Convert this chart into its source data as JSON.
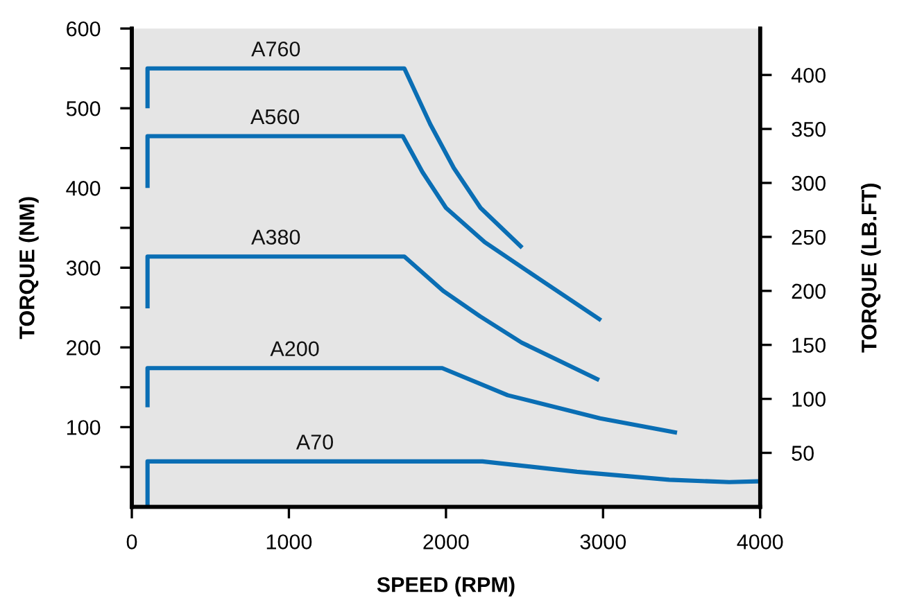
{
  "chart_data": {
    "type": "line",
    "xlabel": "SPEED (RPM)",
    "ylabel": "TORQUE (NM)",
    "y2label": "TORQUE (LB.FT)",
    "xlim": [
      0,
      4000
    ],
    "xticks": [
      0,
      1000,
      2000,
      3000,
      4000
    ],
    "ylim": [
      0,
      600
    ],
    "yticks": [
      {
        "value": 50,
        "label": null
      },
      100,
      {
        "value": 150,
        "label": null
      },
      200,
      {
        "value": 250,
        "label": null
      },
      300,
      {
        "value": 350,
        "label": null
      },
      400,
      {
        "value": 450,
        "label": null
      },
      500,
      {
        "value": 550,
        "label": null
      },
      600
    ],
    "y2lim": [
      0,
      443
    ],
    "y2ticks": [
      50,
      100,
      150,
      200,
      250,
      300,
      350,
      400
    ],
    "grid": false,
    "legend": false,
    "marker": "none",
    "line_style": "solid",
    "series": [
      {
        "name": "A760",
        "color": "#0a6eb4",
        "x": [
          100,
          100,
          1735,
          1900,
          2050,
          2220,
          2485
        ],
        "values": [
          500,
          550,
          550,
          480,
          425,
          375,
          325
        ]
      },
      {
        "name": "A560",
        "color": "#0a6eb4",
        "x": [
          100,
          100,
          1725,
          1850,
          2000,
          2247,
          2600,
          2987
        ],
        "values": [
          400,
          465,
          465,
          420,
          375,
          332,
          285,
          234
        ]
      },
      {
        "name": "A380",
        "color": "#0a6eb4",
        "x": [
          100,
          100,
          1735,
          1982,
          2217,
          2482,
          2975
        ],
        "values": [
          249,
          314,
          314,
          271,
          239,
          206,
          159
        ]
      },
      {
        "name": "A200",
        "color": "#0a6eb4",
        "x": [
          100,
          100,
          1976,
          2393,
          2981,
          3471
        ],
        "values": [
          125,
          174,
          174,
          140,
          111,
          93
        ]
      },
      {
        "name": "A70",
        "color": "#0a6eb4",
        "x": [
          100,
          100,
          2232,
          2834,
          3421,
          3803,
          3988
        ],
        "values": [
          0,
          57,
          57,
          44,
          34,
          31,
          32
        ]
      }
    ]
  }
}
